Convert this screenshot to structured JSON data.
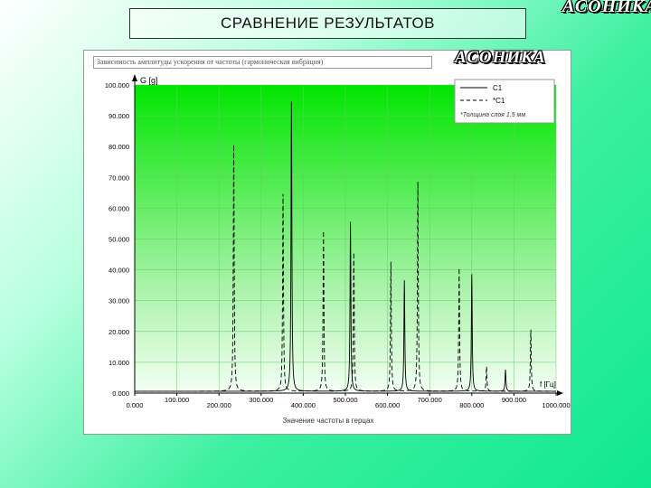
{
  "slide": {
    "title": "СРАВНЕНИЕ РЕЗУЛЬТАТОВ",
    "logo": "АСОНИКА"
  },
  "panel": {
    "caption": "Зависимость амплитуды ускорения от частоты (гармоническая вибрация)",
    "logo": "АСОНИКА"
  },
  "chart_data": {
    "type": "line",
    "ylabel": "G [g]",
    "xlabel": "Значение частоты в герцах",
    "xunit": "f [Гц]",
    "xlim": [
      0,
      1000
    ],
    "ylim": [
      0,
      100
    ],
    "x_ticks": [
      "0.000",
      "100.000",
      "200.000",
      "300.000",
      "400.000",
      "500.000",
      "600.000",
      "700.000",
      "800.000",
      "900.000",
      "1000.000"
    ],
    "y_ticks": [
      "0.000",
      "10.000",
      "20.000",
      "30.000",
      "40.000",
      "50.000",
      "60.000",
      "70.000",
      "80.000",
      "90.000",
      "100.000"
    ],
    "grid": true,
    "legend_position": "top-right",
    "legend_note": "*Толщина слоя 1.5 мм",
    "series": [
      {
        "name": "C1",
        "style": "solid",
        "color": "#000000",
        "peaks": [
          {
            "f": 372,
            "a": 94
          },
          {
            "f": 512,
            "a": 55
          },
          {
            "f": 640,
            "a": 36
          },
          {
            "f": 800,
            "a": 38
          },
          {
            "f": 880,
            "a": 7
          }
        ]
      },
      {
        "name": "*C1",
        "style": "dashed",
        "color": "#000000",
        "peaks": [
          {
            "f": 235,
            "a": 80
          },
          {
            "f": 352,
            "a": 64
          },
          {
            "f": 448,
            "a": 52
          },
          {
            "f": 520,
            "a": 45
          },
          {
            "f": 608,
            "a": 42
          },
          {
            "f": 672,
            "a": 68
          },
          {
            "f": 770,
            "a": 40
          },
          {
            "f": 835,
            "a": 8
          },
          {
            "f": 940,
            "a": 20
          }
        ]
      }
    ]
  }
}
